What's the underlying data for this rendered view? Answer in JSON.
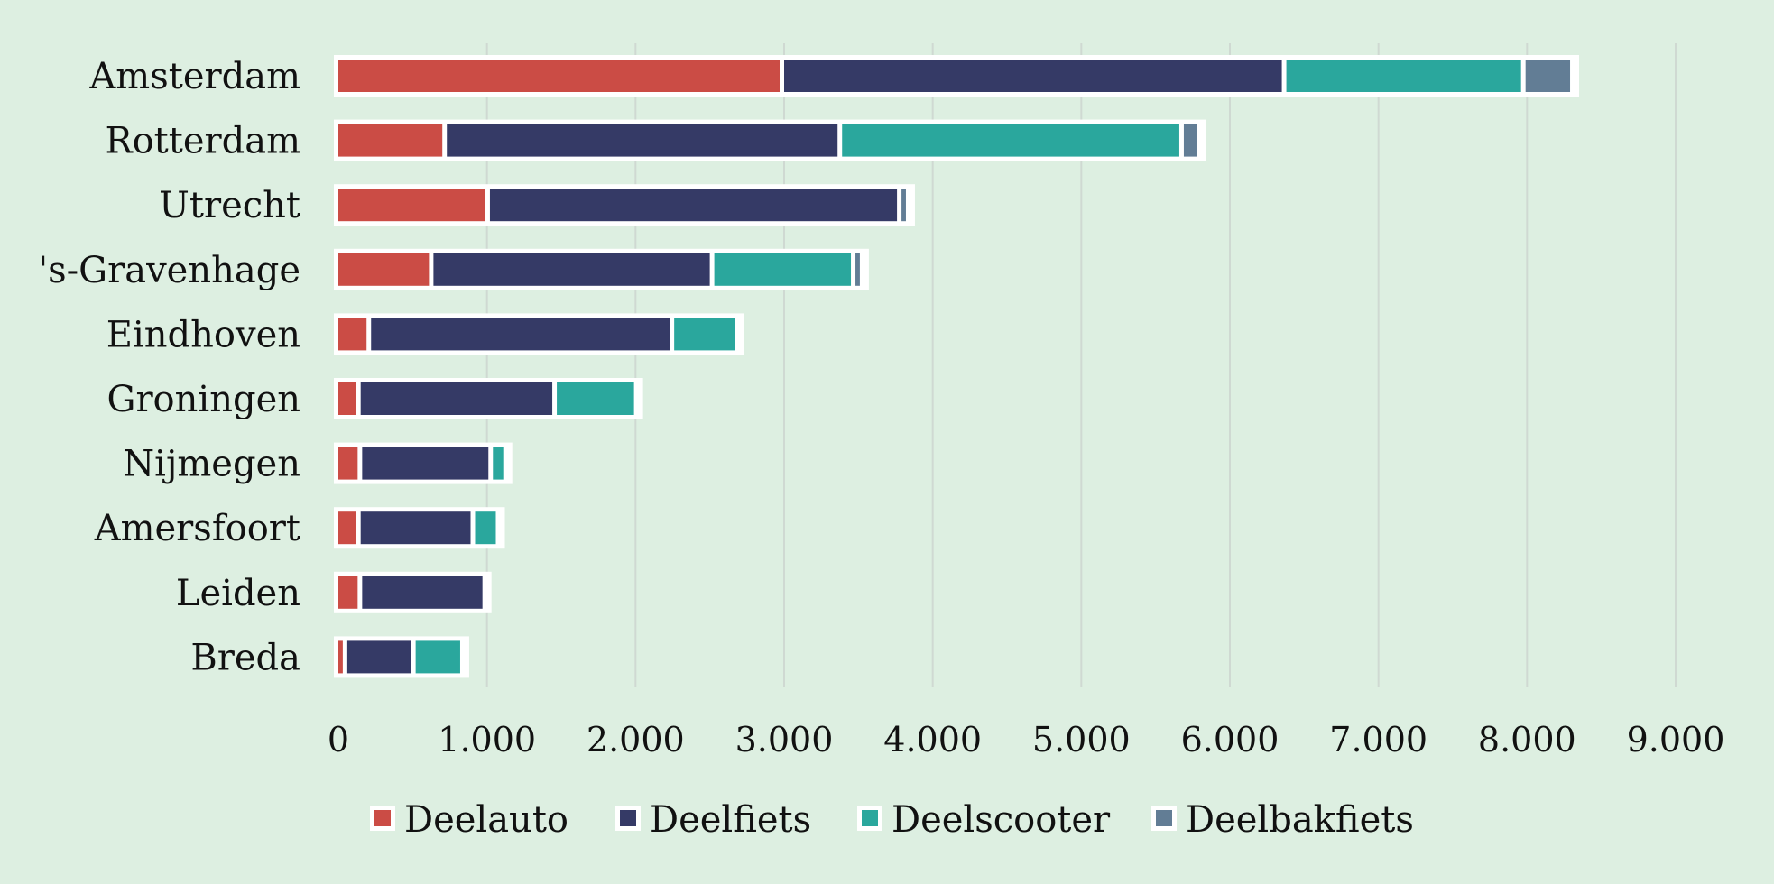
{
  "chart_data": {
    "type": "bar",
    "orientation": "horizontal",
    "stacked": true,
    "categories": [
      "Amsterdam",
      "Rotterdam",
      "Utrecht",
      "'s-Gravenhage",
      "Eindhoven",
      "Groningen",
      "Nijmegen",
      "Amersfoort",
      "Leiden",
      "Breda"
    ],
    "series": [
      {
        "name": "Deelauto",
        "color": "#cb4c45",
        "values": [
          3000,
          730,
          1020,
          640,
          220,
          150,
          160,
          150,
          160,
          60
        ]
      },
      {
        "name": "Deelfiets",
        "color": "#353a66",
        "values": [
          3380,
          2660,
          2770,
          1890,
          2040,
          1320,
          880,
          770,
          840,
          460
        ]
      },
      {
        "name": "Deelscooter",
        "color": "#2aa79d",
        "values": [
          1610,
          2300,
          0,
          950,
          440,
          550,
          100,
          170,
          0,
          330
        ]
      },
      {
        "name": "Deelbakfiets",
        "color": "#627d95",
        "values": [
          330,
          120,
          60,
          60,
          0,
          0,
          0,
          0,
          0,
          0
        ]
      }
    ],
    "xlim": [
      0,
      9000
    ],
    "x_ticks": [
      0,
      1000,
      2000,
      3000,
      4000,
      5000,
      6000,
      7000,
      8000,
      9000
    ],
    "x_tick_labels": [
      "0",
      "1.000",
      "2.000",
      "3.000",
      "4.000",
      "5.000",
      "6.000",
      "7.000",
      "8.000",
      "9.000"
    ],
    "grid": "vertical",
    "legend": "bottom",
    "title": "",
    "xlabel": "",
    "ylabel": ""
  }
}
